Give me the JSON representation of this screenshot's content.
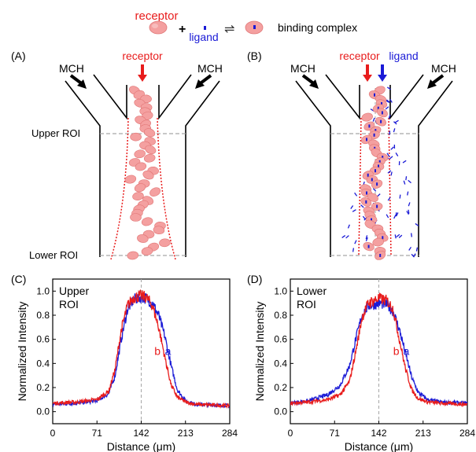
{
  "legend": {
    "receptor": "receptor",
    "plus": "+",
    "ligand": "ligand",
    "arrows": "⇌",
    "complex": "binding complex"
  },
  "panelA": {
    "letter": "(A)",
    "mch_left": "MCH",
    "mch_right": "MCH",
    "receptor": "receptor",
    "upper_roi": "Upper ROI",
    "lower_roi": "Lower ROI"
  },
  "panelB": {
    "letter": "(B)",
    "mch_left": "MCH",
    "mch_right": "MCH",
    "receptor": "receptor",
    "ligand": "ligand"
  },
  "colors": {
    "receptor": "#e81c1c",
    "ligand": "#1a1ad6",
    "cell_fill": "#f4a0a0",
    "cell_stroke": "#e07575",
    "roi_line": "#a6a6a6"
  },
  "chart_data": [
    {
      "type": "line",
      "panel_letter": "(C)",
      "annotation": [
        "Upper",
        "ROI"
      ],
      "xlabel": "Distance (μm)",
      "ylabel": "Normalized Intensity",
      "xlim": [
        0,
        284
      ],
      "ylim": [
        -0.1,
        1.1
      ],
      "xticks": [
        "0",
        "71",
        "142",
        "213",
        "284"
      ],
      "yticks": [
        "0.0",
        "0.2",
        "0.4",
        "0.6",
        "0.8",
        "1.0"
      ],
      "center_line_x": 142,
      "series": [
        {
          "name": "a",
          "color": "#1a1ad6",
          "x": [
            0,
            40,
            71,
            90,
            100,
            110,
            120,
            130,
            142,
            150,
            160,
            170,
            180,
            190,
            200,
            213,
            230,
            284
          ],
          "y": [
            0.06,
            0.07,
            0.09,
            0.15,
            0.3,
            0.6,
            0.85,
            0.93,
            0.95,
            0.94,
            0.9,
            0.8,
            0.62,
            0.38,
            0.18,
            0.09,
            0.06,
            0.05
          ]
        },
        {
          "name": "b",
          "color": "#e81c1c",
          "x": [
            0,
            40,
            71,
            90,
            100,
            110,
            120,
            130,
            142,
            150,
            160,
            170,
            180,
            190,
            200,
            213,
            230,
            284
          ],
          "y": [
            0.07,
            0.08,
            0.1,
            0.17,
            0.35,
            0.68,
            0.88,
            0.95,
            0.96,
            0.95,
            0.88,
            0.7,
            0.45,
            0.22,
            0.12,
            0.08,
            0.06,
            0.05
          ]
        }
      ],
      "label_b": "b",
      "label_a": "a",
      "label_pos": {
        "b_x": 168,
        "a_x": 185,
        "y": 0.47
      }
    },
    {
      "type": "line",
      "panel_letter": "(D)",
      "annotation": [
        "Lower",
        "ROI"
      ],
      "xlabel": "Distance (μm)",
      "ylabel": "Normalized Intensity",
      "xlim": [
        0,
        284
      ],
      "ylim": [
        -0.1,
        1.1
      ],
      "xticks": [
        "0",
        "71",
        "142",
        "213",
        "284"
      ],
      "yticks": [
        "0.0",
        "0.2",
        "0.4",
        "0.6",
        "0.8",
        "1.0"
      ],
      "center_line_x": 142,
      "series": [
        {
          "name": "a",
          "color": "#1a1ad6",
          "x": [
            0,
            30,
            60,
            80,
            95,
            105,
            115,
            125,
            142,
            155,
            165,
            175,
            185,
            195,
            205,
            220,
            240,
            284
          ],
          "y": [
            0.07,
            0.09,
            0.14,
            0.22,
            0.38,
            0.6,
            0.8,
            0.88,
            0.9,
            0.89,
            0.83,
            0.68,
            0.48,
            0.28,
            0.16,
            0.1,
            0.08,
            0.07
          ]
        },
        {
          "name": "b",
          "color": "#e81c1c",
          "x": [
            0,
            30,
            60,
            80,
            95,
            105,
            115,
            125,
            142,
            155,
            165,
            175,
            185,
            195,
            205,
            220,
            240,
            284
          ],
          "y": [
            0.07,
            0.08,
            0.1,
            0.14,
            0.25,
            0.5,
            0.78,
            0.9,
            0.94,
            0.92,
            0.85,
            0.6,
            0.35,
            0.18,
            0.11,
            0.08,
            0.07,
            0.06
          ]
        }
      ],
      "label_b": "b",
      "label_a": "a",
      "label_pos": {
        "b_x": 170,
        "a_x": 186,
        "y": 0.47
      }
    }
  ]
}
